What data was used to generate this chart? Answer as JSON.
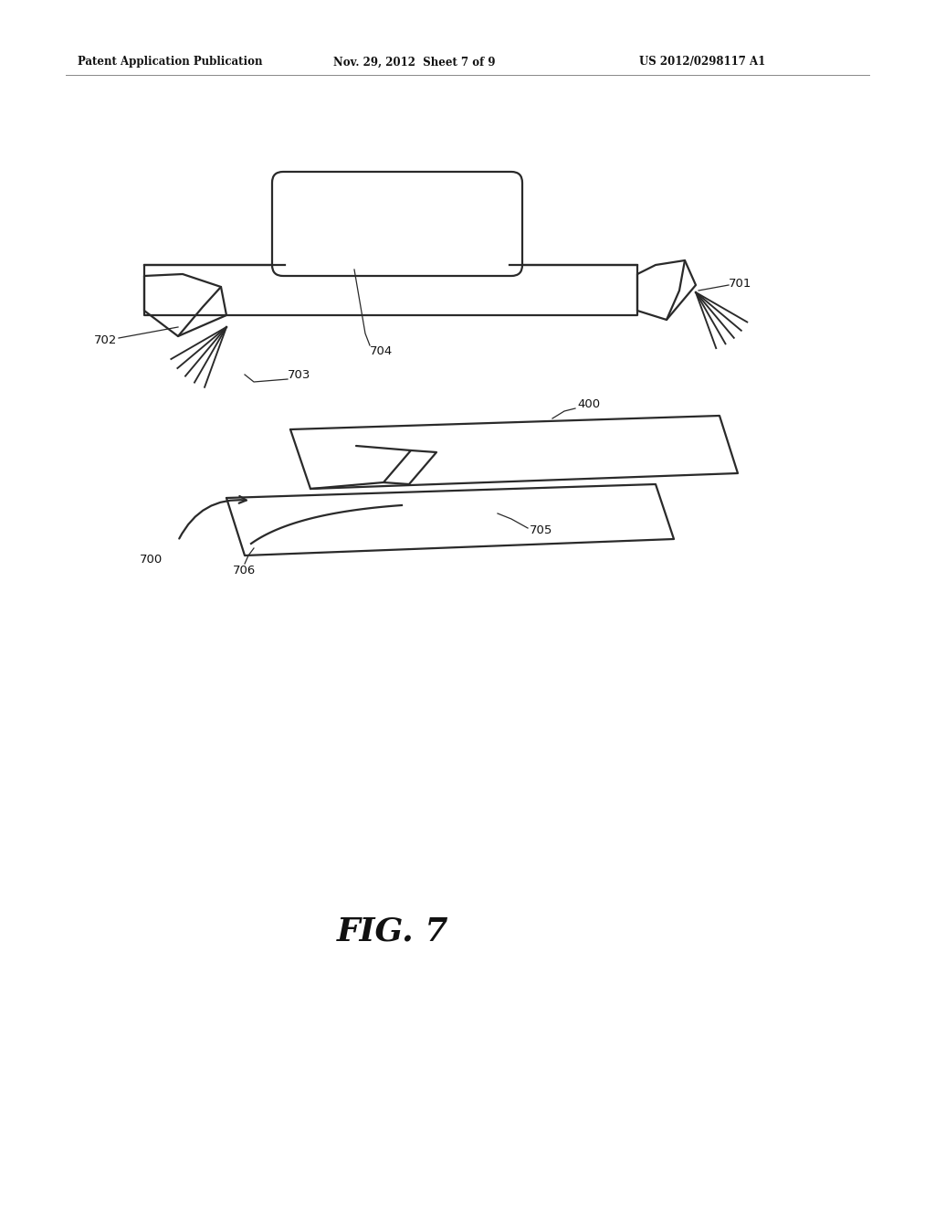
{
  "background_color": "#ffffff",
  "line_color": "#2a2a2a",
  "line_width": 1.6,
  "header_text": "Patent Application Publication",
  "header_date": "Nov. 29, 2012  Sheet 7 of 9",
  "header_patent": "US 2012/0298117 A1",
  "fig_label": "FIG. 7"
}
